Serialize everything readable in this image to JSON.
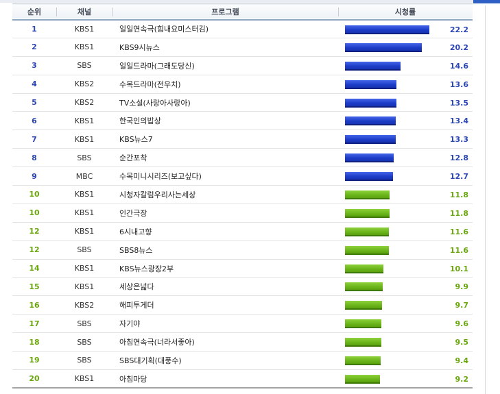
{
  "header": {
    "rank": "순위",
    "channel": "채널",
    "program": "프로그램",
    "rating": "시청률"
  },
  "rating_max": 22.2,
  "colors": {
    "top_tier": "#2c47b4",
    "lower_tier": "#6aa70f"
  },
  "rows": [
    {
      "rank": "1",
      "channel": "KBS1",
      "program": "일일연속극(힘내요미스터김)",
      "rating": "22.2",
      "value": 22.2,
      "tier": "blue"
    },
    {
      "rank": "2",
      "channel": "KBS1",
      "program": "KBS9시뉴스",
      "rating": "20.2",
      "value": 20.2,
      "tier": "blue"
    },
    {
      "rank": "3",
      "channel": "SBS",
      "program": "일일드라마(그래도당신)",
      "rating": "14.6",
      "value": 14.6,
      "tier": "blue"
    },
    {
      "rank": "4",
      "channel": "KBS2",
      "program": "수목드라마(전우치)",
      "rating": "13.6",
      "value": 13.6,
      "tier": "blue"
    },
    {
      "rank": "5",
      "channel": "KBS2",
      "program": "TV소설(사랑아사랑아)",
      "rating": "13.5",
      "value": 13.5,
      "tier": "blue"
    },
    {
      "rank": "6",
      "channel": "KBS1",
      "program": "한국인의밥상",
      "rating": "13.4",
      "value": 13.4,
      "tier": "blue"
    },
    {
      "rank": "7",
      "channel": "KBS1",
      "program": "KBS뉴스7",
      "rating": "13.3",
      "value": 13.3,
      "tier": "blue"
    },
    {
      "rank": "8",
      "channel": "SBS",
      "program": "순간포착",
      "rating": "12.8",
      "value": 12.8,
      "tier": "blue"
    },
    {
      "rank": "9",
      "channel": "MBC",
      "program": "수목미니시리즈(보고싶다)",
      "rating": "12.7",
      "value": 12.7,
      "tier": "blue"
    },
    {
      "rank": "10",
      "channel": "KBS1",
      "program": "시청자칼럼우리사는세상",
      "rating": "11.8",
      "value": 11.8,
      "tier": "green"
    },
    {
      "rank": "10",
      "channel": "KBS1",
      "program": "인간극장",
      "rating": "11.8",
      "value": 11.8,
      "tier": "green"
    },
    {
      "rank": "12",
      "channel": "KBS1",
      "program": "6시내고향",
      "rating": "11.6",
      "value": 11.6,
      "tier": "green"
    },
    {
      "rank": "12",
      "channel": "SBS",
      "program": "SBS8뉴스",
      "rating": "11.6",
      "value": 11.6,
      "tier": "green"
    },
    {
      "rank": "14",
      "channel": "KBS1",
      "program": "KBS뉴스광장2부",
      "rating": "10.1",
      "value": 10.1,
      "tier": "green"
    },
    {
      "rank": "15",
      "channel": "KBS1",
      "program": "세상은넓다",
      "rating": "9.9",
      "value": 9.9,
      "tier": "green"
    },
    {
      "rank": "16",
      "channel": "KBS2",
      "program": "해피투게더",
      "rating": "9.7",
      "value": 9.7,
      "tier": "green"
    },
    {
      "rank": "17",
      "channel": "SBS",
      "program": "자기야",
      "rating": "9.6",
      "value": 9.6,
      "tier": "green"
    },
    {
      "rank": "18",
      "channel": "SBS",
      "program": "아침연속극(너라서좋아)",
      "rating": "9.5",
      "value": 9.5,
      "tier": "green"
    },
    {
      "rank": "19",
      "channel": "SBS",
      "program": "SBS대기획(대풍수)",
      "rating": "9.4",
      "value": 9.4,
      "tier": "green"
    },
    {
      "rank": "20",
      "channel": "KBS1",
      "program": "아침마당",
      "rating": "9.2",
      "value": 9.2,
      "tier": "green"
    }
  ]
}
